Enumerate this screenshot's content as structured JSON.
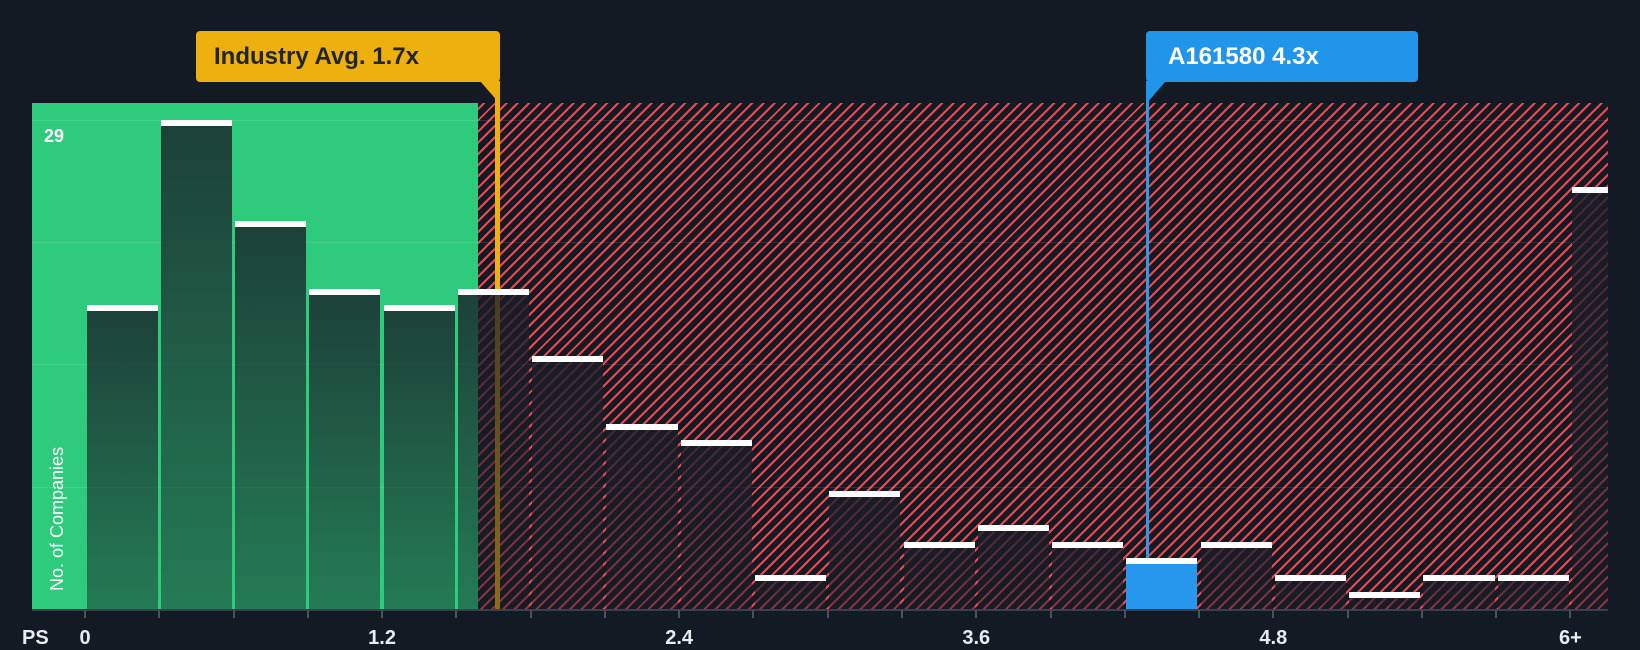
{
  "chart_data": {
    "type": "bar",
    "subtype": "histogram",
    "ylabel": "No. of Companies",
    "xlabel": "PS",
    "y_max": 29,
    "y_max_label": "29",
    "ylim": [
      0,
      29
    ],
    "bin_width": 0.3,
    "grid": "horizontal, 4 faint quarter lines",
    "legend_position": "none",
    "x_ticks": [
      {
        "label": "0",
        "value": 0.0
      },
      {
        "label": "1.2",
        "value": 1.2
      },
      {
        "label": "2.4",
        "value": 2.4
      },
      {
        "label": "3.6",
        "value": 3.6
      },
      {
        "label": "4.8",
        "value": 4.8
      },
      {
        "label": "6+",
        "value": 6.0
      }
    ],
    "bars": [
      {
        "from": 0.0,
        "to": 0.3,
        "count": 18,
        "zone": "below-avg"
      },
      {
        "from": 0.3,
        "to": 0.6,
        "count": 29,
        "zone": "below-avg"
      },
      {
        "from": 0.6,
        "to": 0.9,
        "count": 23,
        "zone": "below-avg"
      },
      {
        "from": 0.9,
        "to": 1.2,
        "count": 19,
        "zone": "below-avg"
      },
      {
        "from": 1.2,
        "to": 1.5,
        "count": 18,
        "zone": "below-avg"
      },
      {
        "from": 1.5,
        "to": 1.8,
        "count": 19,
        "zone": "straddles-avg"
      },
      {
        "from": 1.8,
        "to": 2.1,
        "count": 15,
        "zone": "above-avg"
      },
      {
        "from": 2.1,
        "to": 2.4,
        "count": 11,
        "zone": "above-avg"
      },
      {
        "from": 2.4,
        "to": 2.7,
        "count": 10,
        "zone": "above-avg"
      },
      {
        "from": 2.7,
        "to": 3.0,
        "count": 2,
        "zone": "above-avg"
      },
      {
        "from": 3.0,
        "to": 3.3,
        "count": 7,
        "zone": "above-avg"
      },
      {
        "from": 3.3,
        "to": 3.6,
        "count": 4,
        "zone": "above-avg"
      },
      {
        "from": 3.6,
        "to": 3.9,
        "count": 5,
        "zone": "above-avg"
      },
      {
        "from": 3.9,
        "to": 4.2,
        "count": 4,
        "zone": "above-avg"
      },
      {
        "from": 4.2,
        "to": 4.5,
        "count": 3,
        "zone": "above-avg",
        "highlight": true
      },
      {
        "from": 4.5,
        "to": 4.8,
        "count": 4,
        "zone": "above-avg"
      },
      {
        "from": 4.8,
        "to": 5.1,
        "count": 2,
        "zone": "above-avg"
      },
      {
        "from": 5.1,
        "to": 5.4,
        "count": 1,
        "zone": "above-avg"
      },
      {
        "from": 5.4,
        "to": 5.7,
        "count": 2,
        "zone": "above-avg"
      },
      {
        "from": 5.7,
        "to": 6.0,
        "count": 2,
        "zone": "above-avg"
      },
      {
        "from": 6.0,
        "to": null,
        "label": "6+",
        "count": 25,
        "zone": "above-avg"
      }
    ],
    "markers": {
      "industry": {
        "label": "Industry Avg. 1.7x",
        "value": 1.7,
        "color": "#edb00e"
      },
      "company": {
        "label": "A161580 4.3x",
        "value": 4.3,
        "color": "#2195e9"
      }
    },
    "colors": {
      "background": "#141a23",
      "below_avg_zone": "#2ecb7d",
      "above_avg_hatch_stripe": "#ee4750",
      "highlight_bar": "#2697ed",
      "bar_cap": "#ffffff"
    }
  }
}
